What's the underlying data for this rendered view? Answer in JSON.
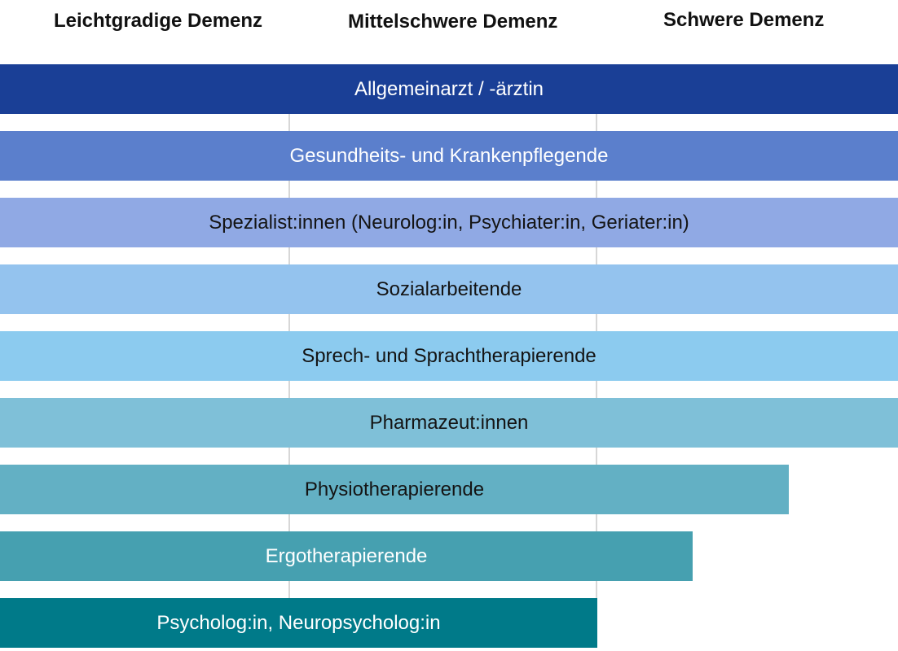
{
  "stages": [
    "Leichtgradige Demenz",
    "Mittelschwere Demenz",
    "Schwere Demenz"
  ],
  "professions": [
    {
      "label": "Allgemeinarzt / -ärztin",
      "coverage": 1.0,
      "color": "#1a3f96",
      "text_color": "#ffffff"
    },
    {
      "label": "Gesundheits- und Krankenpflegende",
      "coverage": 1.0,
      "color": "#5b7fcc",
      "text_color": "#ffffff"
    },
    {
      "label": "Spezialist:innen (Neurolog:in, Psychiater:in, Geriater:in)",
      "coverage": 1.0,
      "color": "#90a9e4",
      "text_color": "#141414"
    },
    {
      "label": "Sozialarbeitende",
      "coverage": 1.0,
      "color": "#94c3ee",
      "text_color": "#141414"
    },
    {
      "label": "Sprech- und Sprachtherapierende",
      "coverage": 1.0,
      "color": "#8ccbef",
      "text_color": "#141414"
    },
    {
      "label": "Pharmazeut:innen",
      "coverage": 1.0,
      "color": "#7fc0d8",
      "text_color": "#141414"
    },
    {
      "label": "Physiotherapierende",
      "coverage": 0.88,
      "color": "#63b0c4",
      "text_color": "#141414"
    },
    {
      "label": "Ergotherapierende",
      "coverage": 0.77,
      "color": "#46a0b0",
      "text_color": "#ffffff"
    },
    {
      "label": "Psycholog:in, Neuropsycholog:in",
      "coverage": 0.67,
      "color": "#007a89",
      "text_color": "#ffffff"
    }
  ]
}
